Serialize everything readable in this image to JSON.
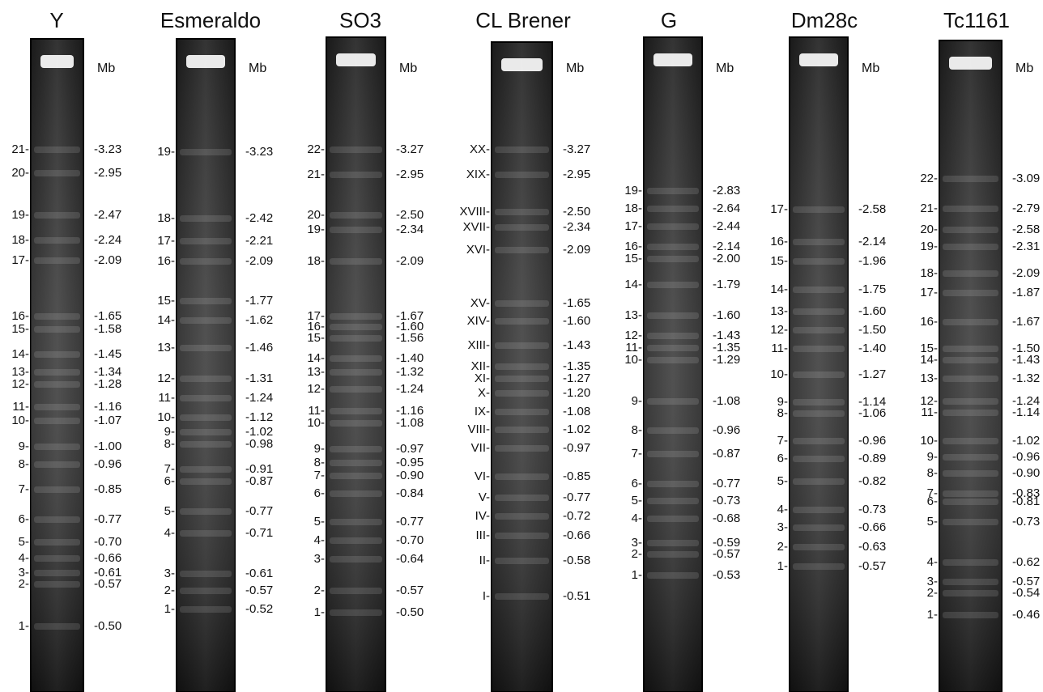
{
  "lanes": [
    {
      "title": "Y",
      "unit": "Mb",
      "bands": [
        [
          "21-",
          "-3.23"
        ],
        [
          "20-",
          "-2.95"
        ],
        [
          "19-",
          "-2.47"
        ],
        [
          "18-",
          "-2.24"
        ],
        [
          "17-",
          "-2.09"
        ],
        [
          "16-",
          "-1.65"
        ],
        [
          "15-",
          "-1.58"
        ],
        [
          "14-",
          "-1.45"
        ],
        [
          "13-",
          "-1.34"
        ],
        [
          "12-",
          "-1.28"
        ],
        [
          "11-",
          "-1.16"
        ],
        [
          "10-",
          "-1.07"
        ],
        [
          "9-",
          "-1.00"
        ],
        [
          "8-",
          "-0.96"
        ],
        [
          "7-",
          "-0.85"
        ],
        [
          "6-",
          "-0.77"
        ],
        [
          "5-",
          "-0.70"
        ],
        [
          "4-",
          "-0.66"
        ],
        [
          "3-",
          "-0.61"
        ],
        [
          "2-",
          "-0.57"
        ],
        [
          "1-",
          "-0.50"
        ]
      ]
    },
    {
      "title": "Esmeraldo",
      "unit": "Mb",
      "bands": [
        [
          "19-",
          "-3.23"
        ],
        [
          "18-",
          "-2.42"
        ],
        [
          "17-",
          "-2.21"
        ],
        [
          "16-",
          "-2.09"
        ],
        [
          "15-",
          "-1.77"
        ],
        [
          "14-",
          "-1.62"
        ],
        [
          "13-",
          "-1.46"
        ],
        [
          "12-",
          "-1.31"
        ],
        [
          "11-",
          "-1.24"
        ],
        [
          "10-",
          "-1.12"
        ],
        [
          "9-",
          "-1.02"
        ],
        [
          "8-",
          "-0.98"
        ],
        [
          "7-",
          "-0.91"
        ],
        [
          "6-",
          "-0.87"
        ],
        [
          "5-",
          "-0.77"
        ],
        [
          "4-",
          "-0.71"
        ],
        [
          "3-",
          "-0.61"
        ],
        [
          "2-",
          "-0.57"
        ],
        [
          "1-",
          "-0.52"
        ]
      ]
    },
    {
      "title": "SO3",
      "unit": "Mb",
      "bands": [
        [
          "22-",
          "-3.27"
        ],
        [
          "21-",
          "-2.95"
        ],
        [
          "20-",
          "-2.50"
        ],
        [
          "19-",
          "-2.34"
        ],
        [
          "18-",
          "-2.09"
        ],
        [
          "17-",
          "-1.67"
        ],
        [
          "16-",
          "-1.60"
        ],
        [
          "15-",
          "-1.56"
        ],
        [
          "14-",
          "-1.40"
        ],
        [
          "13-",
          "-1.32"
        ],
        [
          "12-",
          "-1.24"
        ],
        [
          "11-",
          "-1.16"
        ],
        [
          "10-",
          "-1.08"
        ],
        [
          "9-",
          "-0.97"
        ],
        [
          "8-",
          "-0.95"
        ],
        [
          "7-",
          "-0.90"
        ],
        [
          "6-",
          "-0.84"
        ],
        [
          "5-",
          "-0.77"
        ],
        [
          "4-",
          "-0.70"
        ],
        [
          "3-",
          "-0.64"
        ],
        [
          "2-",
          "-0.57"
        ],
        [
          "1-",
          "-0.50"
        ]
      ]
    },
    {
      "title": "CL Brener",
      "unit": "Mb",
      "bands": [
        [
          "XX-",
          "-3.27"
        ],
        [
          "XIX-",
          "-2.95"
        ],
        [
          "XVIII-",
          "-2.50"
        ],
        [
          "XVII-",
          "-2.34"
        ],
        [
          "XVI-",
          "-2.09"
        ],
        [
          "XV-",
          "-1.65"
        ],
        [
          "XIV-",
          "-1.60"
        ],
        [
          "XIII-",
          "-1.43"
        ],
        [
          "XII-",
          "-1.35"
        ],
        [
          "XI-",
          "-1.27"
        ],
        [
          "X-",
          "-1.20"
        ],
        [
          "IX-",
          "-1.08"
        ],
        [
          "VIII-",
          "-1.02"
        ],
        [
          "VII-",
          "-0.97"
        ],
        [
          "VI-",
          "-0.85"
        ],
        [
          "V-",
          "-0.77"
        ],
        [
          "IV-",
          "-0.72"
        ],
        [
          "III-",
          "-0.66"
        ],
        [
          "II-",
          "-0.58"
        ],
        [
          "I-",
          "-0.51"
        ]
      ]
    },
    {
      "title": "G",
      "unit": "Mb",
      "bands": [
        [
          "19-",
          "-2.83"
        ],
        [
          "18-",
          "-2.64"
        ],
        [
          "17-",
          "-2.44"
        ],
        [
          "16-",
          "-2.14"
        ],
        [
          "15-",
          "-2.00"
        ],
        [
          "14-",
          "-1.79"
        ],
        [
          "13-",
          "-1.60"
        ],
        [
          "12-",
          "-1.43"
        ],
        [
          "11-",
          "-1.35"
        ],
        [
          "10-",
          "-1.29"
        ],
        [
          "9-",
          "-1.08"
        ],
        [
          "8-",
          "-0.96"
        ],
        [
          "7-",
          "-0.87"
        ],
        [
          "6-",
          "-0.77"
        ],
        [
          "5-",
          "-0.73"
        ],
        [
          "4-",
          "-0.68"
        ],
        [
          "3-",
          "-0.59"
        ],
        [
          "2-",
          "-0.57"
        ],
        [
          "1-",
          "-0.53"
        ]
      ]
    },
    {
      "title": "Dm28c",
      "unit": "Mb",
      "bands": [
        [
          "17-",
          "-2.58"
        ],
        [
          "16-",
          "-2.14"
        ],
        [
          "15-",
          "-1.96"
        ],
        [
          "14-",
          "-1.75"
        ],
        [
          "13-",
          "-1.60"
        ],
        [
          "12-",
          "-1.50"
        ],
        [
          "11-",
          "-1.40"
        ],
        [
          "10-",
          "-1.27"
        ],
        [
          "9-",
          "-1.14"
        ],
        [
          "8-",
          "-1.06"
        ],
        [
          "7-",
          "-0.96"
        ],
        [
          "6-",
          "-0.89"
        ],
        [
          "5-",
          "-0.82"
        ],
        [
          "4-",
          "-0.73"
        ],
        [
          "3-",
          "-0.66"
        ],
        [
          "2-",
          "-0.63"
        ],
        [
          "1-",
          "-0.57"
        ]
      ]
    },
    {
      "title": "Tc1161",
      "unit": "Mb",
      "bands": [
        [
          "22-",
          "-3.09"
        ],
        [
          "21-",
          "-2.79"
        ],
        [
          "20-",
          "-2.58"
        ],
        [
          "19-",
          "-2.31"
        ],
        [
          "18-",
          "-2.09"
        ],
        [
          "17-",
          "-1.87"
        ],
        [
          "16-",
          "-1.67"
        ],
        [
          "15-",
          "-1.50"
        ],
        [
          "14-",
          "-1.43"
        ],
        [
          "13-",
          "-1.32"
        ],
        [
          "12-",
          "-1.24"
        ],
        [
          "11-",
          "-1.14"
        ],
        [
          "10-",
          "-1.02"
        ],
        [
          "9-",
          "-0.96"
        ],
        [
          "8-",
          "-0.90"
        ],
        [
          "7-",
          "-0.83"
        ],
        [
          "6-",
          "-0.81"
        ],
        [
          "5-",
          "-0.73"
        ],
        [
          "4-",
          "-0.62"
        ],
        [
          "3-",
          "-0.57"
        ],
        [
          "2-",
          "-0.54"
        ],
        [
          "1-",
          "-0.46"
        ]
      ]
    }
  ]
}
